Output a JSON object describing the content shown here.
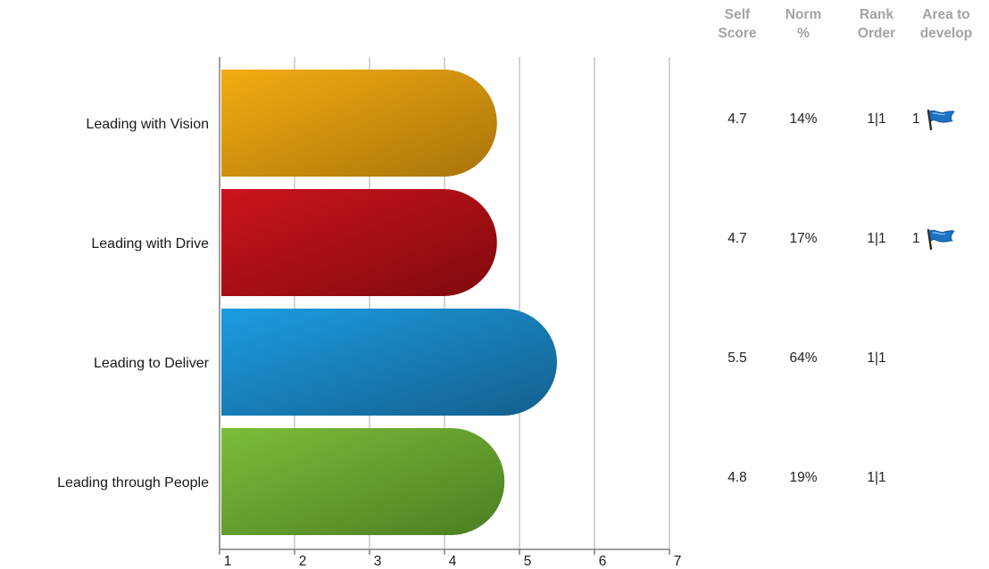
{
  "chart_data": {
    "type": "bar",
    "orientation": "horizontal",
    "categories": [
      "Leading with Vision",
      "Leading with Drive",
      "Leading to Deliver",
      "Leading through People"
    ],
    "values": [
      4.7,
      4.7,
      5.5,
      4.8
    ],
    "xlim": [
      1,
      7
    ],
    "xticks": [
      "1",
      "2",
      "3",
      "4",
      "5",
      "6",
      "7"
    ],
    "grid": true,
    "bar_colors": [
      [
        "#f4ac12",
        "#a8740a"
      ],
      [
        "#cc141c",
        "#7f0a0d"
      ],
      [
        "#1c9ce2",
        "#145f8c"
      ],
      [
        "#7cbd3a",
        "#4b7e22"
      ]
    ]
  },
  "table": {
    "headers": [
      [
        "Self",
        "Score"
      ],
      [
        "Norm",
        "%"
      ],
      [
        "Rank",
        "Order"
      ],
      [
        "Area to",
        "develop"
      ]
    ],
    "rows": [
      {
        "score": "4.7",
        "norm": "14%",
        "rank": "1|1",
        "develop": "1",
        "flag": true
      },
      {
        "score": "4.7",
        "norm": "17%",
        "rank": "1|1",
        "develop": "1",
        "flag": true
      },
      {
        "score": "5.5",
        "norm": "64%",
        "rank": "1|1",
        "develop": "",
        "flag": false
      },
      {
        "score": "4.8",
        "norm": "19%",
        "rank": "1|1",
        "develop": "",
        "flag": false
      }
    ],
    "flag_icon": "blue-flag-icon",
    "flag_color": "#1e72c2"
  }
}
